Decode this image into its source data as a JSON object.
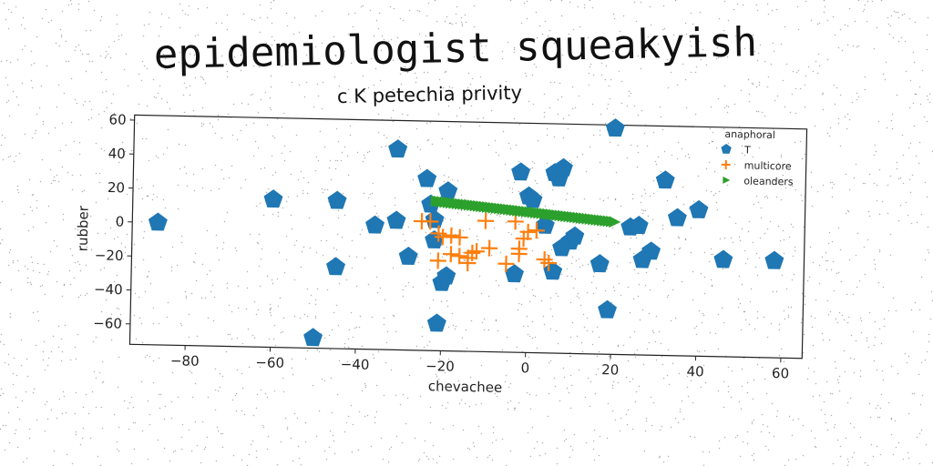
{
  "title": "epidemiologist squeakyish",
  "subtitle": "c K petechia privity",
  "colors": {
    "series_T": "#1f77b4",
    "series_multicore": "#ff7f0e",
    "series_oleanders": "#2ca02c"
  },
  "chart_data": {
    "type": "scatter",
    "xlabel": "chevachee",
    "ylabel": "rubber",
    "xlim": [
      -93,
      65
    ],
    "ylim": [
      -72,
      63
    ],
    "xticks": [
      -80,
      -60,
      -40,
      -20,
      0,
      20,
      40,
      60
    ],
    "yticks": [
      -60,
      -40,
      -20,
      0,
      20,
      40,
      60
    ],
    "xtick_labels": [
      "−80",
      "−60",
      "−40",
      "−20",
      "0",
      "20",
      "40",
      "60"
    ],
    "ytick_labels": [
      "−60",
      "−40",
      "−20",
      "0",
      "20",
      "40",
      "60"
    ],
    "grid": false,
    "legend": {
      "title": "anaphoral",
      "placement": "top-right"
    },
    "series": [
      {
        "name": "T",
        "marker": "pentagon",
        "points": [
          [
            -87,
            0
          ],
          [
            -60,
            15
          ],
          [
            -50,
            -66
          ],
          [
            -45,
            15
          ],
          [
            -45,
            -24
          ],
          [
            -36,
            1
          ],
          [
            -31,
            46
          ],
          [
            -31,
            4
          ],
          [
            -28,
            -17
          ],
          [
            -24,
            29
          ],
          [
            -23,
            14
          ],
          [
            -22,
            5
          ],
          [
            -22,
            -7
          ],
          [
            -21,
            -56
          ],
          [
            -20,
            -32
          ],
          [
            -19,
            -28
          ],
          [
            -19,
            22
          ],
          [
            -2,
            34
          ],
          [
            0,
            20
          ],
          [
            1,
            18
          ],
          [
            -3,
            -26
          ],
          [
            4,
            3
          ],
          [
            6,
            34
          ],
          [
            7,
            31
          ],
          [
            8,
            37
          ],
          [
            6,
            -24
          ],
          [
            8,
            -10
          ],
          [
            10,
            -6
          ],
          [
            11,
            -3
          ],
          [
            17,
            -19
          ],
          [
            19,
            -46
          ],
          [
            20,
            61
          ],
          [
            24,
            3
          ],
          [
            26,
            4
          ],
          [
            27,
            -16
          ],
          [
            29,
            -11
          ],
          [
            32,
            31
          ],
          [
            35,
            9
          ],
          [
            40,
            14
          ],
          [
            46,
            -15
          ],
          [
            58,
            -15
          ]
        ]
      },
      {
        "name": "multicore",
        "marker": "plus",
        "points": [
          [
            -25,
            4
          ],
          [
            -23,
            4
          ],
          [
            -21,
            -3
          ],
          [
            -20,
            -5
          ],
          [
            -18,
            -4
          ],
          [
            -16,
            -5
          ],
          [
            -21,
            -19
          ],
          [
            -18,
            -15
          ],
          [
            -16,
            -16
          ],
          [
            -14,
            -17
          ],
          [
            -14,
            -20
          ],
          [
            -13,
            -14
          ],
          [
            -10,
            5
          ],
          [
            -9,
            -11
          ],
          [
            -5,
            -20
          ],
          [
            -3,
            5
          ],
          [
            -2,
            -14
          ],
          [
            -1,
            -5
          ],
          [
            -2,
            -11
          ],
          [
            0,
            -1
          ],
          [
            2,
            0
          ],
          [
            4,
            -17
          ],
          [
            5,
            -19
          ],
          [
            -12,
            -13
          ]
        ]
      },
      {
        "name": "oleanders",
        "marker": "triangle-right",
        "line_from": [
          -22,
          16
        ],
        "line_to": [
          20,
          6
        ],
        "count": 60
      }
    ]
  }
}
